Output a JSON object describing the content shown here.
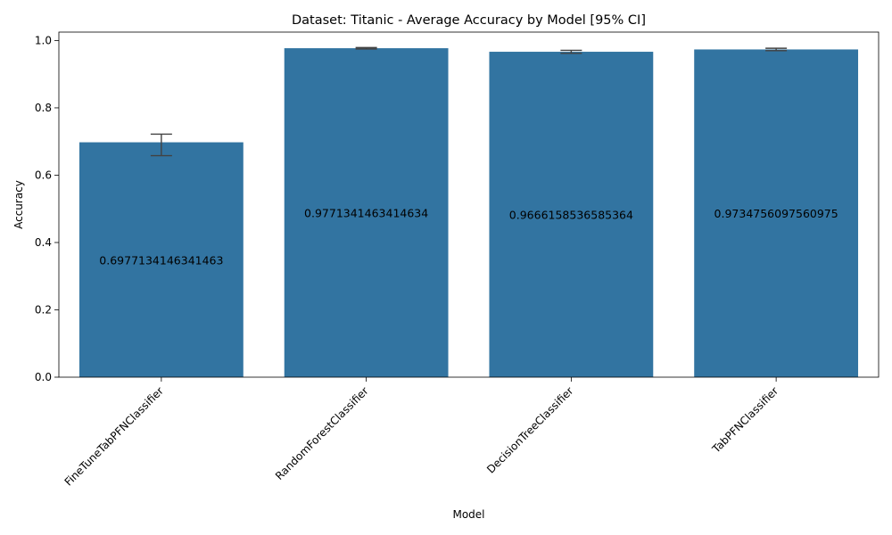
{
  "chart_data": {
    "type": "bar",
    "title": "Dataset: Titanic - Average Accuracy by Model [95% CI]",
    "xlabel": "Model",
    "ylabel": "Accuracy",
    "ylim": [
      0,
      1.025
    ],
    "yticks": [
      0.0,
      0.2,
      0.4,
      0.6,
      0.8,
      1.0
    ],
    "ytick_labels": [
      "0.0",
      "0.2",
      "0.4",
      "0.6",
      "0.8",
      "1.0"
    ],
    "categories": [
      "FineTuneTabPFNClassifier",
      "RandomForestClassifier",
      "DecisionTreeClassifier",
      "TabPFNClassifier"
    ],
    "values": [
      0.6977134146341463,
      0.9771341463414634,
      0.9666158536585364,
      0.9734756097560975
    ],
    "value_labels": [
      "0.6977134146341463",
      "0.9771341463414634",
      "0.9666158536585364",
      "0.9734756097560975"
    ],
    "ci": [
      [
        0.658,
        0.722
      ],
      [
        0.975,
        0.979
      ],
      [
        0.962,
        0.971
      ],
      [
        0.97,
        0.977
      ]
    ],
    "grid": false,
    "colors": {
      "bar": "#3274a1",
      "errorbar": "#424242"
    }
  }
}
